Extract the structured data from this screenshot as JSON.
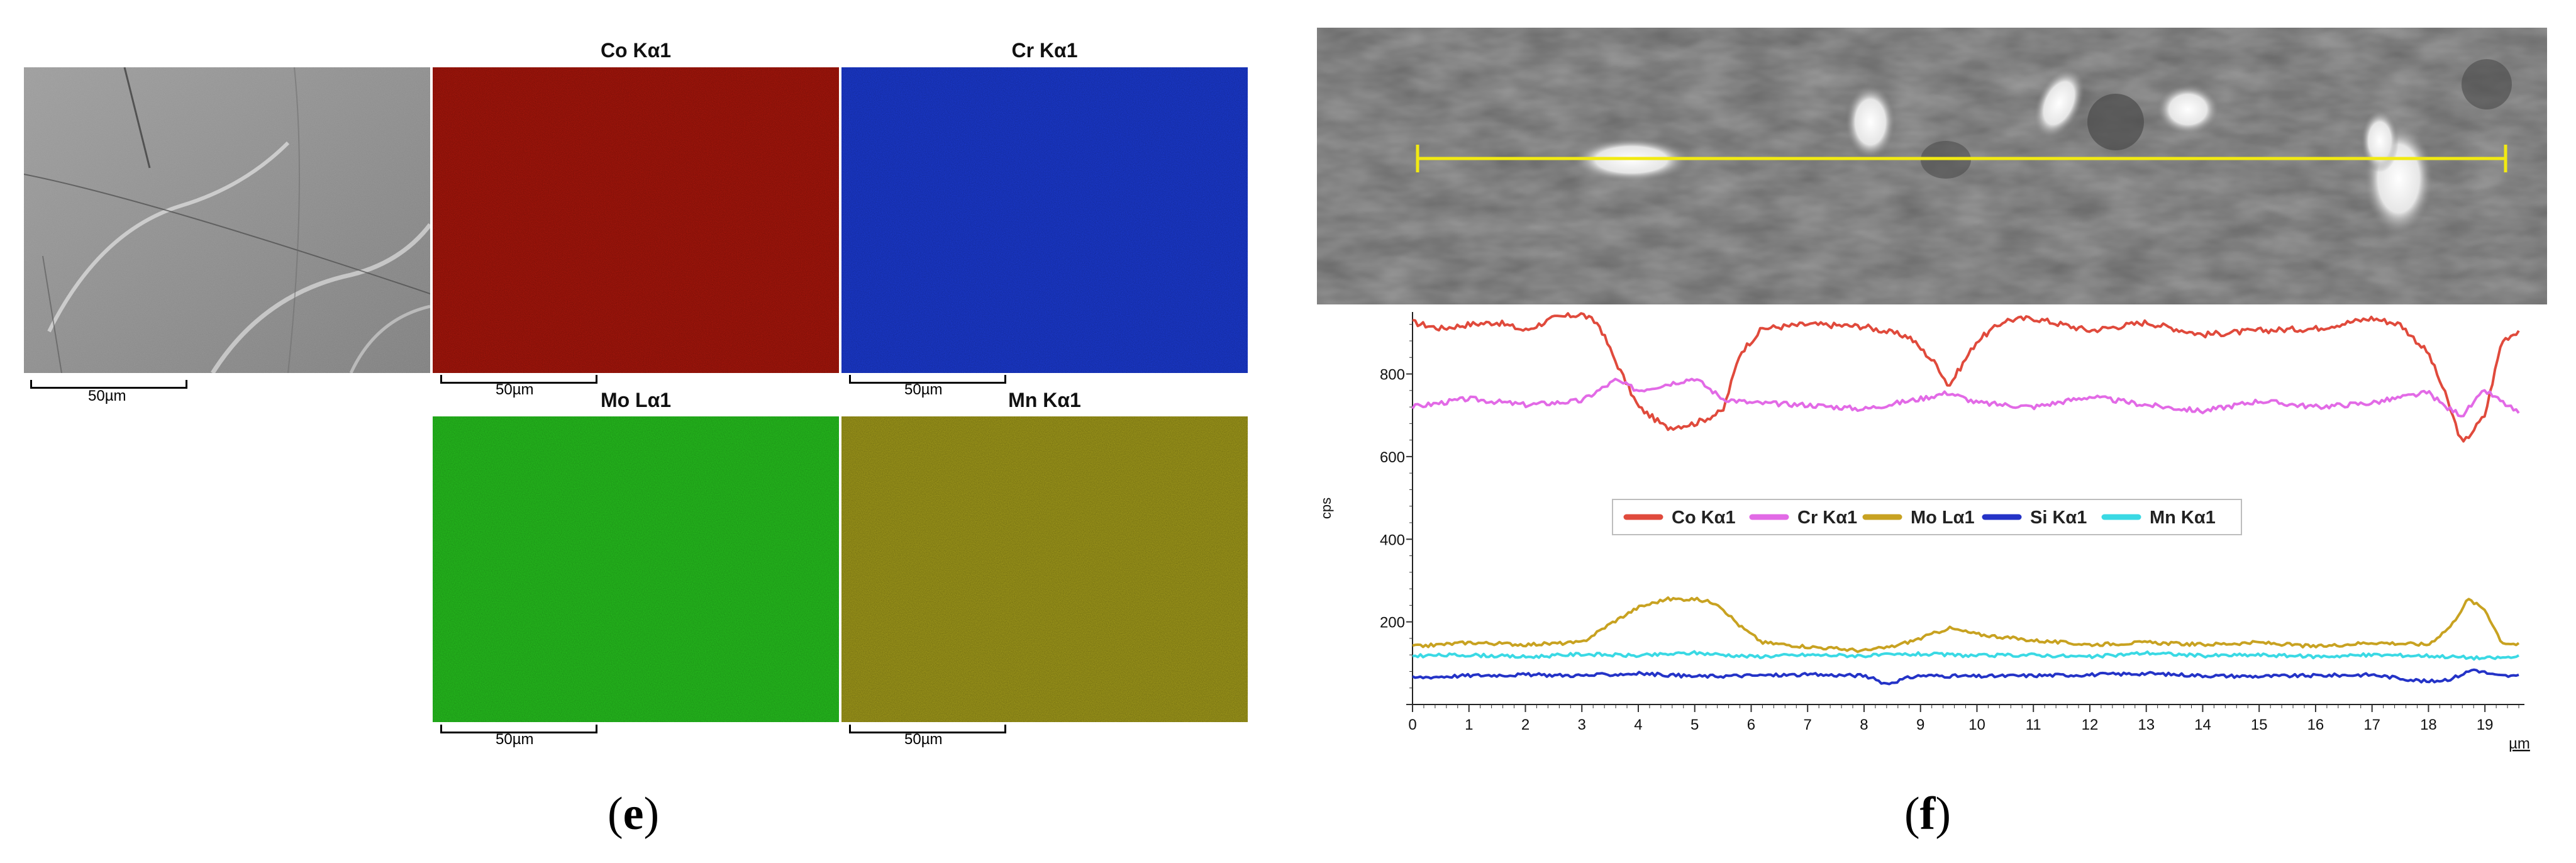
{
  "panel_e": {
    "label_open": "(",
    "label_letter": "e",
    "label_close": ")",
    "sem_scale": "50µm",
    "maps": [
      {
        "title": "Co Kα1",
        "scale": "50µm",
        "color": "#b0170c"
      },
      {
        "title": "Cr Kα1",
        "scale": "50µm",
        "color": "#1c3cd8"
      },
      {
        "title": "Mo Lα1",
        "scale": "50µm",
        "color": "#27c41f"
      },
      {
        "title": "Mn Kα1",
        "scale": "50µm",
        "color": "#a8a11c"
      }
    ]
  },
  "panel_f": {
    "label_open": "(",
    "label_letter": "f",
    "label_close": ")",
    "chart_data": {
      "type": "line",
      "title": "",
      "xlabel": "µm",
      "ylabel": "cps",
      "xlim": [
        0,
        19.7
      ],
      "ylim": [
        0,
        950
      ],
      "x_ticks": [
        "0",
        "1",
        "2",
        "3",
        "4",
        "5",
        "6",
        "7",
        "8",
        "9",
        "10",
        "11",
        "12",
        "13",
        "14",
        "15",
        "16",
        "17",
        "18",
        "19"
      ],
      "y_ticks": [
        "200",
        "400",
        "600",
        "800"
      ],
      "legend_position": "center",
      "series": [
        {
          "name": "Co Kα1",
          "color": "#e04a3c",
          "x": [
            0,
            0.5,
            1,
            1.5,
            2,
            2.5,
            3,
            3.3,
            3.6,
            4,
            4.5,
            5,
            5.5,
            5.8,
            6.2,
            7,
            8,
            8.8,
            9.3,
            9.5,
            10,
            10.5,
            11,
            12,
            13,
            14,
            15,
            16,
            17,
            17.5,
            18,
            18.3,
            18.6,
            19,
            19.3,
            19.6
          ],
          "y": [
            925,
            910,
            920,
            925,
            905,
            935,
            945,
            920,
            830,
            720,
            670,
            680,
            710,
            850,
            910,
            920,
            915,
            890,
            820,
            770,
            880,
            930,
            935,
            905,
            925,
            895,
            905,
            910,
            935,
            920,
            850,
            750,
            630,
            700,
            880,
            905
          ]
        },
        {
          "name": "Cr Kα1",
          "color": "#e26ae6",
          "x": [
            0,
            1,
            2,
            3,
            3.6,
            4,
            4.5,
            5,
            5.5,
            6,
            7,
            8,
            9,
            9.5,
            10,
            11,
            12,
            13,
            14,
            15,
            16,
            17,
            18,
            18.3,
            18.6,
            19,
            19.6
          ],
          "y": [
            720,
            740,
            725,
            735,
            785,
            760,
            775,
            790,
            740,
            730,
            725,
            715,
            740,
            755,
            730,
            720,
            745,
            725,
            710,
            735,
            720,
            730,
            755,
            720,
            700,
            760,
            705
          ]
        },
        {
          "name": "Mo Lα1",
          "color": "#c8a221",
          "x": [
            0,
            1,
            2,
            3,
            3.5,
            4,
            4.5,
            5,
            5.4,
            5.8,
            6.2,
            7,
            8,
            8.5,
            9,
            9.5,
            10,
            11,
            12,
            13,
            14,
            15,
            16,
            17,
            18,
            18.4,
            18.7,
            19,
            19.3,
            19.6
          ],
          "y": [
            140,
            150,
            145,
            150,
            195,
            235,
            255,
            255,
            245,
            190,
            150,
            140,
            130,
            140,
            160,
            185,
            170,
            155,
            145,
            150,
            145,
            150,
            140,
            150,
            145,
            190,
            255,
            230,
            150,
            145
          ]
        },
        {
          "name": "Si Kα1",
          "color": "#2433c7",
          "x": [
            0,
            1,
            2,
            3,
            4,
            5,
            6,
            7,
            8,
            8.4,
            8.8,
            9,
            10,
            11,
            12,
            13,
            14,
            15,
            16,
            17,
            18,
            18.4,
            18.8,
            19.2,
            19.6
          ],
          "y": [
            65,
            70,
            72,
            70,
            75,
            68,
            70,
            72,
            70,
            50,
            65,
            70,
            68,
            70,
            72,
            75,
            70,
            68,
            70,
            72,
            55,
            62,
            85,
            70,
            68
          ]
        },
        {
          "name": "Mn Kα1",
          "color": "#3ad9e4",
          "x": [
            0,
            1,
            2,
            3,
            4,
            5,
            6,
            7,
            8,
            9,
            10,
            11,
            12,
            13,
            14,
            15,
            16,
            17,
            18,
            19,
            19.6
          ],
          "y": [
            118,
            120,
            115,
            122,
            118,
            125,
            116,
            120,
            118,
            122,
            118,
            120,
            115,
            125,
            118,
            120,
            116,
            120,
            118,
            112,
            115
          ]
        }
      ]
    }
  }
}
